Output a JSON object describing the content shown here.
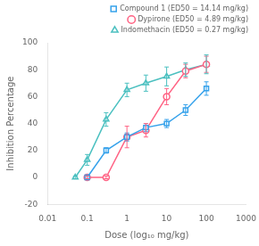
{
  "chart_data": {
    "type": "line",
    "xlabel": "Dose (log₁₀ mg/kg)",
    "ylabel": "Inhibition Percentage",
    "log": "x",
    "xlim": [
      0.01,
      1000
    ],
    "xticks": [
      0.01,
      0.1,
      1,
      10,
      100,
      1000
    ],
    "ylim": [
      -20,
      100
    ],
    "yticks": [
      -20,
      0,
      20,
      40,
      60,
      80,
      100
    ],
    "grid": false,
    "legend": "top",
    "series": [
      {
        "name": "Compound 1 (ED50 = 14.14 mg/kg)",
        "marker": "square",
        "line_style": "solid",
        "x": [
          0.1,
          0.3,
          1,
          3,
          10,
          30,
          100
        ],
        "values": [
          0,
          20,
          30,
          37,
          40,
          50,
          66
        ],
        "yerr": [
          1,
          2,
          3,
          3,
          3,
          4,
          5
        ]
      },
      {
        "name": "Dypirone (ED50 = 4.89 mg/kg)",
        "marker": "circle",
        "line_style": "solid",
        "x": [
          0.1,
          0.3,
          1,
          3,
          10,
          30,
          100
        ],
        "values": [
          0,
          0,
          30,
          35,
          60,
          79,
          84
        ],
        "yerr": [
          1,
          1,
          8,
          5,
          6,
          5,
          6
        ]
      },
      {
        "name": "Indomethacin (ED50 = 0.27 mg/kg)",
        "marker": "triangle",
        "line_style": "solid",
        "x": [
          0.05,
          0.1,
          0.3,
          1,
          3,
          10,
          30,
          100
        ],
        "values": [
          0,
          13,
          43,
          65,
          70,
          75,
          80,
          84
        ],
        "yerr": [
          1,
          4,
          5,
          5,
          6,
          7,
          5,
          7
        ]
      }
    ]
  }
}
